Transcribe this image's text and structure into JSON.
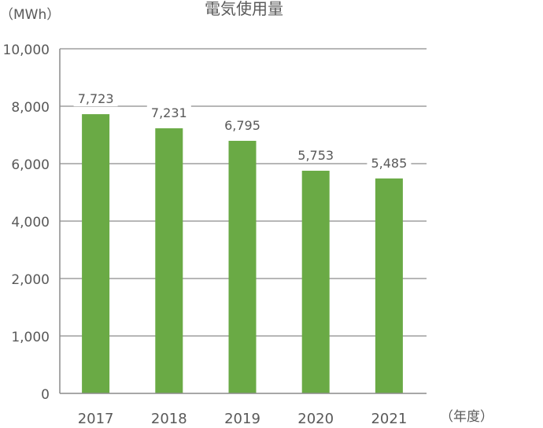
{
  "chart_data": {
    "type": "bar",
    "title": "電気使用量",
    "ylabel": "（MWh）",
    "xlabel": "（年度）",
    "categories": [
      "2017",
      "2018",
      "2019",
      "2020",
      "2021"
    ],
    "values": [
      7723,
      7231,
      6795,
      5753,
      5485
    ],
    "value_labels": [
      "7,723",
      "7,231",
      "6,795",
      "5,753",
      "5,485"
    ],
    "y_ticks": [
      {
        "label": "0",
        "value": 0
      },
      {
        "label": "1,000",
        "value": 1000
      },
      {
        "label": "2,000",
        "value": 2000
      },
      {
        "label": "4,000",
        "value": 4000
      },
      {
        "label": "6,000",
        "value": 6000
      },
      {
        "label": "8,000",
        "value": 8000
      },
      {
        "label": "10,000",
        "value": 10000
      }
    ],
    "grid": true,
    "legend": "none",
    "colors": {
      "bar": "#6aaa45",
      "grid": "#8c8c8c",
      "text": "#595959"
    }
  }
}
